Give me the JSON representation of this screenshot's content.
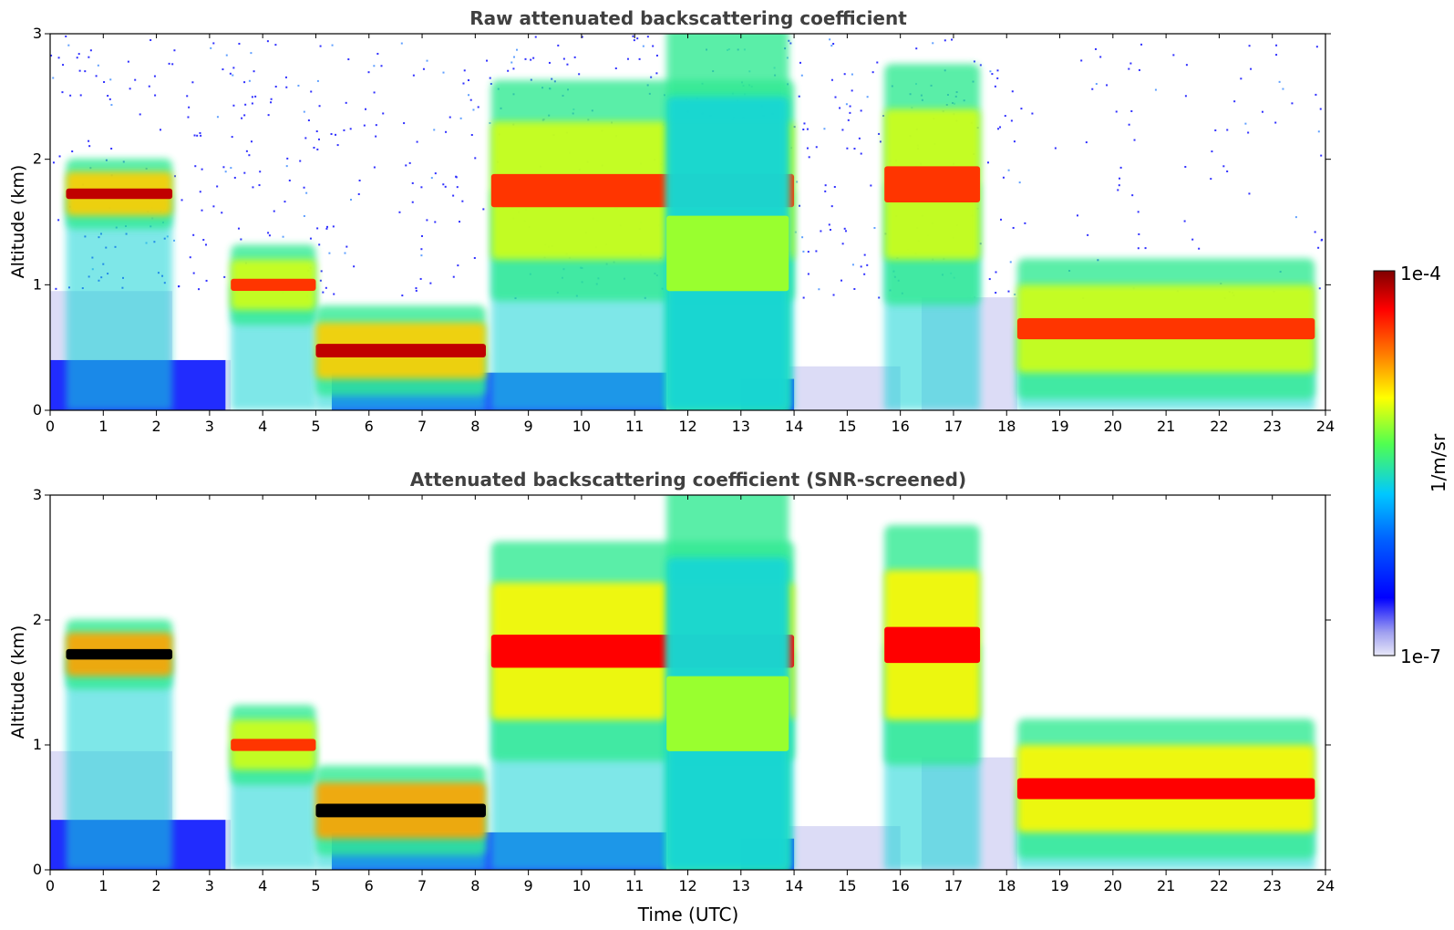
{
  "chart_data": [
    {
      "type": "heatmap",
      "title": "Raw attenuated backscattering coefficient",
      "xlabel": "",
      "ylabel": "Altitude (km)",
      "xlim": [
        0,
        24
      ],
      "ylim": [
        0,
        3
      ],
      "xticks": [
        "0",
        "1",
        "2",
        "3",
        "4",
        "5",
        "6",
        "7",
        "8",
        "9",
        "10",
        "11",
        "12",
        "13",
        "14",
        "15",
        "16",
        "17",
        "18",
        "19",
        "20",
        "21",
        "22",
        "23",
        "24"
      ],
      "yticks": [
        "0",
        "1",
        "2",
        "3"
      ],
      "screened": false,
      "features": [
        {
          "kind": "cloud_layer",
          "start": 0.3,
          "end": 2.3,
          "alt_from": 1.55,
          "alt_to": 1.9,
          "intensity": 0.95
        },
        {
          "kind": "cloud_layer",
          "start": 3.4,
          "end": 5.0,
          "alt_from": 0.8,
          "alt_to": 1.2,
          "intensity": 0.85
        },
        {
          "kind": "cloud_layer",
          "start": 5.0,
          "end": 8.2,
          "alt_from": 0.25,
          "alt_to": 0.7,
          "intensity": 0.95
        },
        {
          "kind": "cloud_layer",
          "start": 8.3,
          "end": 14.0,
          "alt_from": 1.2,
          "alt_to": 2.3,
          "intensity": 0.85
        },
        {
          "kind": "cloud_layer",
          "start": 15.7,
          "end": 17.5,
          "alt_from": 1.2,
          "alt_to": 2.4,
          "intensity": 0.85
        },
        {
          "kind": "boundary_layer",
          "start": 18.2,
          "end": 23.8,
          "alt_from": 0.3,
          "alt_to": 1.0,
          "intensity": 0.85
        },
        {
          "kind": "precipitation",
          "start": 11.6,
          "end": 13.9,
          "alt_from": 0.0,
          "alt_to": 2.5,
          "intensity": 0.6
        }
      ]
    },
    {
      "type": "heatmap",
      "title": "Attenuated backscattering coefficient (SNR-screened)",
      "xlabel": "Time (UTC)",
      "ylabel": "Altitude (km)",
      "xlim": [
        0,
        24
      ],
      "ylim": [
        0,
        3
      ],
      "xticks": [
        "0",
        "1",
        "2",
        "3",
        "4",
        "5",
        "6",
        "7",
        "8",
        "9",
        "10",
        "11",
        "12",
        "13",
        "14",
        "15",
        "16",
        "17",
        "18",
        "19",
        "20",
        "21",
        "22",
        "23",
        "24"
      ],
      "yticks": [
        "0",
        "1",
        "2",
        "3"
      ],
      "screened": true,
      "features": [
        {
          "kind": "cloud_layer",
          "start": 0.3,
          "end": 2.3,
          "alt_from": 1.55,
          "alt_to": 1.9,
          "intensity": 1.0
        },
        {
          "kind": "cloud_layer",
          "start": 3.4,
          "end": 5.0,
          "alt_from": 0.8,
          "alt_to": 1.2,
          "intensity": 0.85
        },
        {
          "kind": "cloud_layer",
          "start": 5.0,
          "end": 8.2,
          "alt_from": 0.25,
          "alt_to": 0.7,
          "intensity": 1.0
        },
        {
          "kind": "cloud_layer",
          "start": 8.3,
          "end": 14.0,
          "alt_from": 1.2,
          "alt_to": 2.3,
          "intensity": 0.9
        },
        {
          "kind": "cloud_layer",
          "start": 15.7,
          "end": 17.5,
          "alt_from": 1.2,
          "alt_to": 2.4,
          "intensity": 0.9
        },
        {
          "kind": "boundary_layer",
          "start": 18.2,
          "end": 23.8,
          "alt_from": 0.3,
          "alt_to": 1.0,
          "intensity": 0.9
        },
        {
          "kind": "precipitation",
          "start": 11.6,
          "end": 13.9,
          "alt_from": 0.0,
          "alt_to": 2.5,
          "intensity": 0.6
        }
      ]
    }
  ],
  "colorbar": {
    "label": "1/m/sr",
    "max_label": "1e-4",
    "min_label": "1e-7",
    "scale": "log",
    "range": [
      1e-07,
      0.0001
    ],
    "colormap": "jet",
    "colors": [
      "#e8e8f8",
      "#0000ff",
      "#00c8ff",
      "#50ff50",
      "#ffff00",
      "#ff8000",
      "#ff0000",
      "#800000"
    ]
  }
}
